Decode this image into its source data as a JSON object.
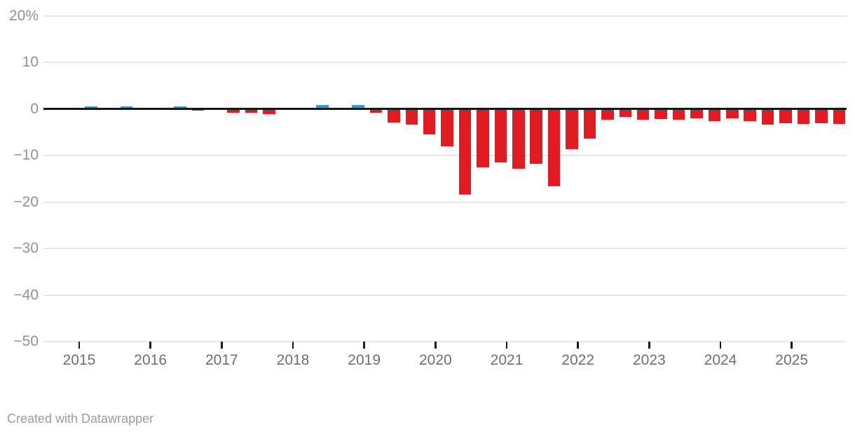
{
  "footer": {
    "credit": "Created with Datawrapper"
  },
  "chart_data": {
    "type": "bar",
    "title": "",
    "subtitle": "",
    "unit": "%",
    "orientation": "vertical-columns",
    "grid": true,
    "legend": false,
    "frequency": "quarterly",
    "y_axis": {
      "min": -50,
      "max": 20,
      "ticks": [
        {
          "value": 20,
          "label": "20%"
        },
        {
          "value": 10,
          "label": "10"
        },
        {
          "value": 0,
          "label": "0"
        },
        {
          "value": -10,
          "label": "−10"
        },
        {
          "value": -20,
          "label": "−20"
        },
        {
          "value": -30,
          "label": "−30"
        },
        {
          "value": -40,
          "label": "−40"
        },
        {
          "value": -50,
          "label": "−50"
        }
      ]
    },
    "x_axis": {
      "year_labels": [
        "2015",
        "2016",
        "2017",
        "2018",
        "2019",
        "2020",
        "2021",
        "2022",
        "2023",
        "2024",
        "2025"
      ]
    },
    "categories": [
      "2015 Q1",
      "2015 Q2",
      "2015 Q3",
      "2015 Q4",
      "2016 Q1",
      "2016 Q2",
      "2016 Q3",
      "2016 Q4",
      "2017 Q1",
      "2017 Q2",
      "2017 Q3",
      "2017 Q4",
      "2018 Q1",
      "2018 Q2",
      "2018 Q3",
      "2018 Q4",
      "2019 Q1",
      "2019 Q2",
      "2019 Q3",
      "2019 Q4",
      "2020 Q1",
      "2020 Q2",
      "2020 Q3",
      "2020 Q4",
      "2021 Q1",
      "2021 Q2",
      "2021 Q3",
      "2021 Q4",
      "2022 Q1",
      "2022 Q2",
      "2022 Q3",
      "2022 Q4",
      "2023 Q1",
      "2023 Q2",
      "2023 Q3",
      "2023 Q4",
      "2024 Q1",
      "2024 Q2",
      "2024 Q3",
      "2024 Q4",
      "2025 Q1",
      "2025 Q2",
      "2025 Q3"
    ],
    "values": [
      0.5,
      0,
      0.5,
      0.2,
      0,
      0.5,
      -0.4,
      0,
      -0.9,
      -0.9,
      -1.2,
      0,
      0,
      0.9,
      0.3,
      0.8,
      -0.8,
      -2.9,
      -3.4,
      -5.5,
      -8.1,
      -18.4,
      -12.6,
      -11.5,
      -12.8,
      -11.8,
      -16.6,
      -8.6,
      -6.4,
      -2.4,
      -1.7,
      -2.4,
      -2.2,
      -2.4,
      -2.0,
      -2.7,
      -2.0,
      -2.7,
      -3.4,
      -3.1,
      -3.2,
      -3.1,
      -3.3
    ],
    "colors": {
      "positive_bar": "#1ea2d9",
      "negative_bar": "#e01c22",
      "zero_line": "#161616",
      "gridline": "#e6e6e6",
      "y_axis_text": "#929292",
      "year_text": "#6f6f6f",
      "tick_mark": "#1a1a1a",
      "credit_text": "#9c9c9c",
      "background": "#ffffff"
    }
  }
}
